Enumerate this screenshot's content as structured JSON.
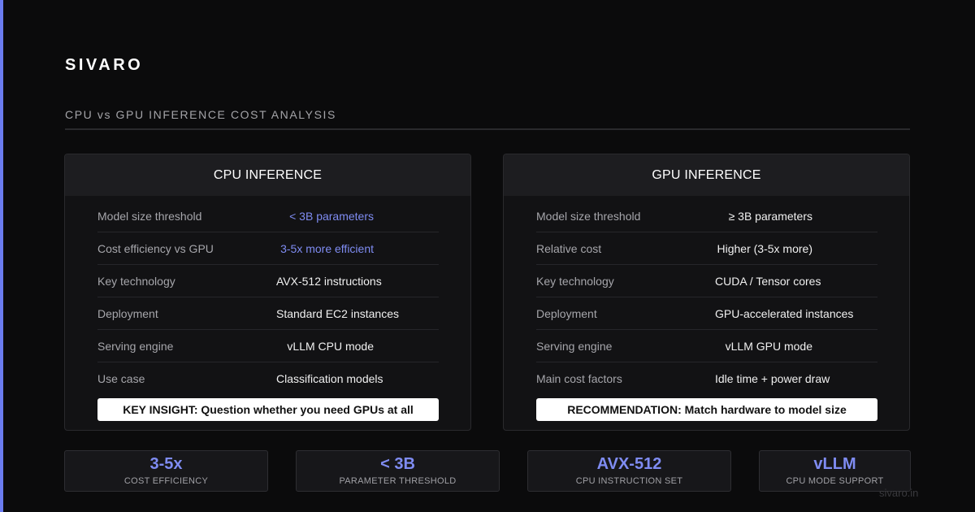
{
  "brand": "SIVARO",
  "subtitle": "CPU vs GPU INFERENCE COST ANALYSIS",
  "colors": {
    "accent": "#7f8cf2",
    "background": "#0b0b0c",
    "card": "#121214"
  },
  "cpu": {
    "title": "CPU INFERENCE",
    "rows": [
      {
        "label": "Model size threshold",
        "value": "< 3B parameters"
      },
      {
        "label": "Cost efficiency vs GPU",
        "value": "3-5x more efficient"
      },
      {
        "label": "Key technology",
        "value": "AVX-512 instructions"
      },
      {
        "label": "Deployment",
        "value": "Standard EC2 instances"
      },
      {
        "label": "Serving engine",
        "value": "vLLM CPU mode"
      },
      {
        "label": "Use case",
        "value": "Classification models"
      }
    ],
    "insight": "KEY INSIGHT: Question whether you need GPUs at all"
  },
  "gpu": {
    "title": "GPU INFERENCE",
    "rows": [
      {
        "label": "Model size threshold",
        "value": "≥ 3B parameters"
      },
      {
        "label": "Relative cost",
        "value": "Higher (3-5x more)"
      },
      {
        "label": "Key technology",
        "value": "CUDA / Tensor cores"
      },
      {
        "label": "Deployment",
        "value": "GPU-accelerated instances"
      },
      {
        "label": "Serving engine",
        "value": "vLLM GPU mode"
      },
      {
        "label": "Main cost factors",
        "value": "Idle time + power draw"
      }
    ],
    "recommendation": "RECOMMENDATION: Match hardware to model size"
  },
  "stats": [
    {
      "value": "3-5x",
      "caption": "COST EFFICIENCY"
    },
    {
      "value": "< 3B",
      "caption": "PARAMETER THRESHOLD"
    },
    {
      "value": "AVX-512",
      "caption": "CPU INSTRUCTION SET"
    },
    {
      "value": "vLLM",
      "caption": "CPU MODE SUPPORT"
    }
  ],
  "watermark": "sivaro.in"
}
